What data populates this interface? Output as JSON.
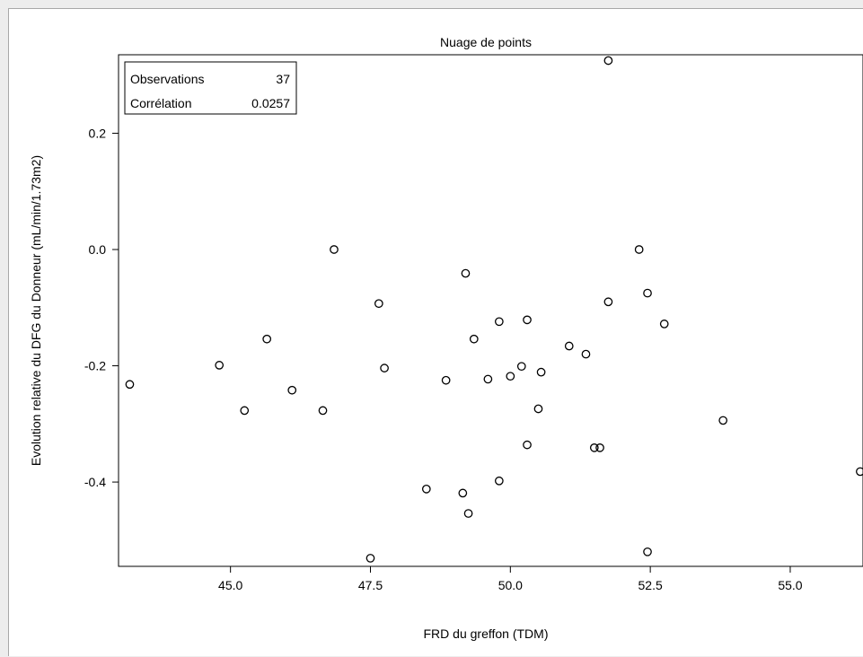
{
  "chart_data": {
    "type": "scatter",
    "title": "Nuage de points",
    "xlabel": "FRD du greffon (TDM)",
    "ylabel": "Evolution relative du DFG du Donneur (mL/min/1.73m2)",
    "xlim": [
      43.0,
      56.3
    ],
    "ylim": [
      -0.545,
      0.335
    ],
    "xticks": [
      45.0,
      47.5,
      50.0,
      52.5,
      55.0
    ],
    "xtick_labels": [
      "45.0",
      "47.5",
      "50.0",
      "52.5",
      "55.0"
    ],
    "yticks": [
      0.2,
      0.0,
      -0.2,
      -0.4
    ],
    "ytick_labels": [
      "0.2",
      "0.0",
      "-0.2",
      "-0.4"
    ],
    "grid": false,
    "marker": "open-circle",
    "stats_box": {
      "position": "top-left",
      "rows": [
        {
          "label": "Observations",
          "value": "37"
        },
        {
          "label": "Corrélation",
          "value": "0.0257"
        }
      ]
    },
    "points": [
      {
        "x": 51.75,
        "y": 0.325
      },
      {
        "x": 43.2,
        "y": -0.232
      },
      {
        "x": 44.8,
        "y": -0.199
      },
      {
        "x": 45.25,
        "y": -0.277
      },
      {
        "x": 45.65,
        "y": -0.154
      },
      {
        "x": 46.1,
        "y": -0.242
      },
      {
        "x": 46.65,
        "y": -0.277
      },
      {
        "x": 46.85,
        "y": 0.0
      },
      {
        "x": 47.5,
        "y": -0.531
      },
      {
        "x": 47.65,
        "y": -0.093
      },
      {
        "x": 47.75,
        "y": -0.204
      },
      {
        "x": 48.5,
        "y": -0.412
      },
      {
        "x": 48.85,
        "y": -0.225
      },
      {
        "x": 49.15,
        "y": -0.419
      },
      {
        "x": 49.2,
        "y": -0.041
      },
      {
        "x": 49.25,
        "y": -0.454
      },
      {
        "x": 49.35,
        "y": -0.154
      },
      {
        "x": 49.6,
        "y": -0.223
      },
      {
        "x": 49.8,
        "y": -0.124
      },
      {
        "x": 49.8,
        "y": -0.398
      },
      {
        "x": 50.0,
        "y": -0.218
      },
      {
        "x": 50.2,
        "y": -0.201
      },
      {
        "x": 50.3,
        "y": -0.121
      },
      {
        "x": 50.3,
        "y": -0.336
      },
      {
        "x": 50.5,
        "y": -0.274
      },
      {
        "x": 50.55,
        "y": -0.211
      },
      {
        "x": 51.05,
        "y": -0.166
      },
      {
        "x": 51.35,
        "y": -0.18
      },
      {
        "x": 51.5,
        "y": -0.341
      },
      {
        "x": 51.6,
        "y": -0.341
      },
      {
        "x": 51.75,
        "y": -0.09
      },
      {
        "x": 52.3,
        "y": 0.0
      },
      {
        "x": 52.45,
        "y": -0.075
      },
      {
        "x": 52.45,
        "y": -0.52
      },
      {
        "x": 52.75,
        "y": -0.128
      },
      {
        "x": 53.8,
        "y": -0.294
      },
      {
        "x": 56.25,
        "y": -0.382
      }
    ]
  }
}
